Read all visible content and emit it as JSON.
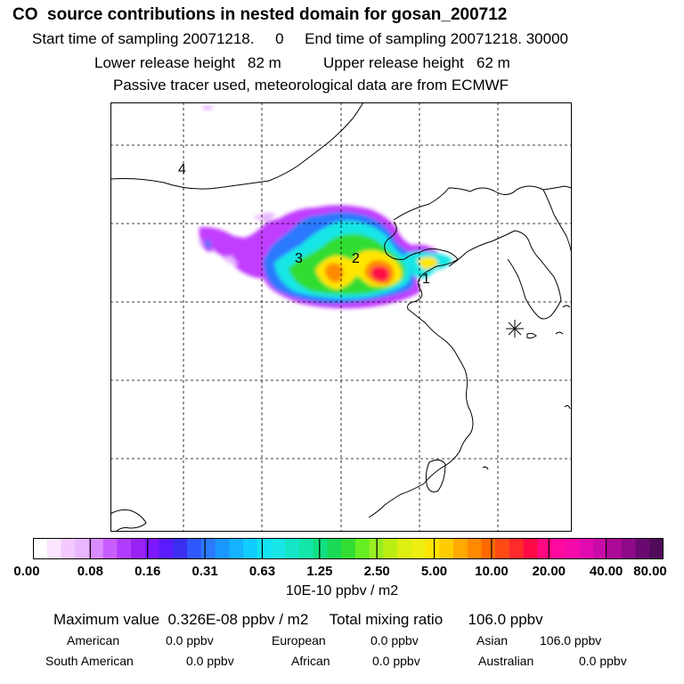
{
  "header": {
    "title": "CO  source contributions in nested domain for gosan_200712",
    "line2": "Start time of sampling 20071218.     0     End time of sampling 20071218. 30000",
    "line3": "Lower release height   82 m          Upper release height   62 m",
    "line4": "Passive tracer used, meteorological data are from ECMWF"
  },
  "map": {
    "region_labels": [
      "1",
      "2",
      "3",
      "4"
    ],
    "station_marker": "station-star-icon",
    "colors": {
      "coast": "#000000",
      "grid": "#000000",
      "core": "#ff0a46",
      "high": "#ffe600",
      "mid": "#33dd33",
      "low": "#19e6e6",
      "lower": "#2b79ff",
      "minimal": "#c13cff",
      "faint": "#e9b6ff"
    }
  },
  "colorbar": {
    "tick_labels": [
      "0.00",
      "0.08",
      "0.16",
      "0.31",
      "0.63",
      "1.25",
      "2.50",
      "5.00",
      "10.00",
      "20.00",
      "40.00",
      "80.00"
    ],
    "colors": [
      "#ffffff",
      "#fbe5ff",
      "#f3c9ff",
      "#e9b6ff",
      "#d98cff",
      "#c85eff",
      "#b23cff",
      "#9b22f5",
      "#7d18ff",
      "#5a1cff",
      "#3b2ef0",
      "#2f58ff",
      "#2b79ff",
      "#1a97ff",
      "#14b2ff",
      "#10ccff",
      "#12e2f2",
      "#19e6e6",
      "#15e6c8",
      "#12e6a8",
      "#10e080",
      "#1ad957",
      "#33dd33",
      "#66ee22",
      "#99ee22",
      "#bbee11",
      "#ddee11",
      "#eeee11",
      "#ffe600",
      "#ffcc00",
      "#ffaa00",
      "#ff8a00",
      "#ff6a00",
      "#ff4a14",
      "#ff2a2a",
      "#ff0a46",
      "#ff0a80",
      "#ff0a9e",
      "#f40aa8",
      "#e00ab0",
      "#c80aa8",
      "#ac0a98",
      "#8e0a88",
      "#6a0a70",
      "#500a5a"
    ],
    "units": "10E-10 ppbv / m2"
  },
  "stats": {
    "max_line": "Maximum value  0.326E-08 ppbv / m2     Total mixing ratio      106.0 ppbv",
    "american_label": "American",
    "american_value": "0.0 ppbv",
    "european_label": "European",
    "european_value": "0.0 ppbv",
    "asian_label": "Asian",
    "asian_value": "106.0 ppbv",
    "south_american_label": "South American",
    "south_american_value": "0.0 ppbv",
    "african_label": "African",
    "african_value": "0.0 ppbv",
    "australian_label": "Australian",
    "australian_value": "0.0 ppbv"
  }
}
